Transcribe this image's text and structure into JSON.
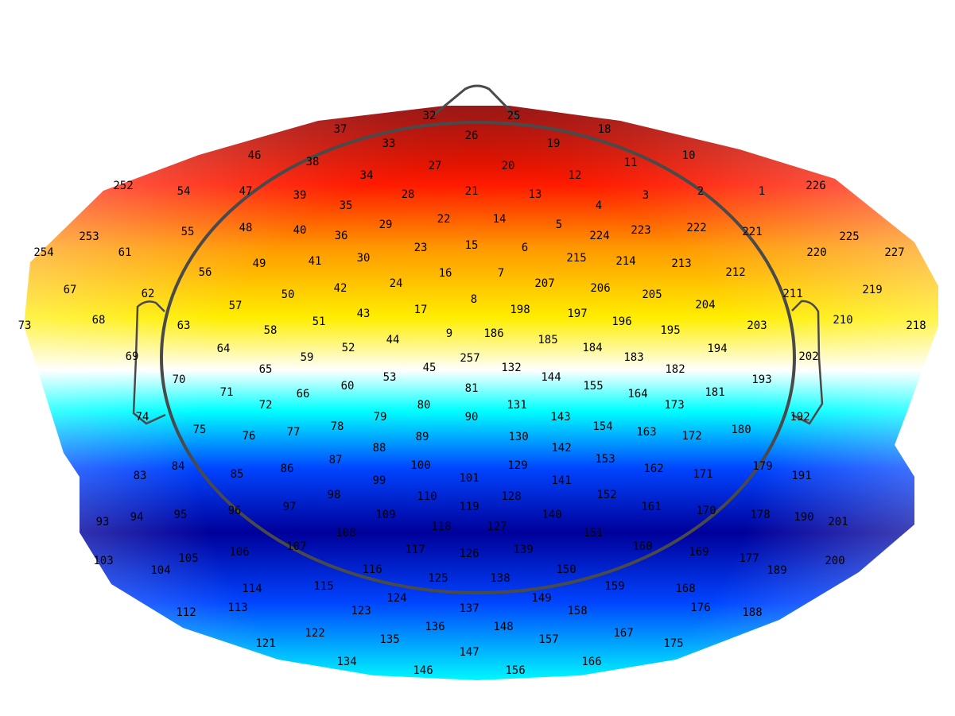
{
  "map": {
    "colors": {
      "dark_red": "#8b0000",
      "red": "#ff1a00",
      "orange": "#ff9900",
      "yellow": "#ffee00",
      "white": "#ffffff",
      "cyan": "#00ffff",
      "blue": "#0044ff",
      "dark_blue": "#00009a",
      "outline": "#4a4a4a"
    },
    "electrodes": [
      {
        "label": "1"
      },
      {
        "label": "2"
      },
      {
        "label": "3"
      },
      {
        "label": "4"
      },
      {
        "label": "5"
      },
      {
        "label": "6"
      },
      {
        "label": "7"
      },
      {
        "label": "8"
      },
      {
        "label": "9"
      },
      {
        "label": "10"
      },
      {
        "label": "11"
      },
      {
        "label": "12"
      },
      {
        "label": "13"
      },
      {
        "label": "14"
      },
      {
        "label": "15"
      },
      {
        "label": "16"
      },
      {
        "label": "17"
      },
      {
        "label": "18"
      },
      {
        "label": "19"
      },
      {
        "label": "20"
      },
      {
        "label": "21"
      },
      {
        "label": "22"
      },
      {
        "label": "23"
      },
      {
        "label": "24"
      },
      {
        "label": "25"
      },
      {
        "label": "26"
      },
      {
        "label": "27"
      },
      {
        "label": "28"
      },
      {
        "label": "29"
      },
      {
        "label": "30"
      },
      {
        "label": "32"
      },
      {
        "label": "33"
      },
      {
        "label": "34"
      },
      {
        "label": "35"
      },
      {
        "label": "36"
      },
      {
        "label": "37"
      },
      {
        "label": "38"
      },
      {
        "label": "39"
      },
      {
        "label": "40"
      },
      {
        "label": "41"
      },
      {
        "label": "42"
      },
      {
        "label": "43"
      },
      {
        "label": "44"
      },
      {
        "label": "45"
      },
      {
        "label": "46"
      },
      {
        "label": "47"
      },
      {
        "label": "48"
      },
      {
        "label": "49"
      },
      {
        "label": "50"
      },
      {
        "label": "51"
      },
      {
        "label": "52"
      },
      {
        "label": "53"
      },
      {
        "label": "54"
      },
      {
        "label": "55"
      },
      {
        "label": "56"
      },
      {
        "label": "57"
      },
      {
        "label": "58"
      },
      {
        "label": "59"
      },
      {
        "label": "60"
      },
      {
        "label": "61"
      },
      {
        "label": "62"
      },
      {
        "label": "63"
      },
      {
        "label": "64"
      },
      {
        "label": "65"
      },
      {
        "label": "66"
      },
      {
        "label": "67"
      },
      {
        "label": "68"
      },
      {
        "label": "69"
      },
      {
        "label": "70"
      },
      {
        "label": "71"
      },
      {
        "label": "72"
      },
      {
        "label": "73"
      },
      {
        "label": "74"
      },
      {
        "label": "75"
      },
      {
        "label": "76"
      },
      {
        "label": "77"
      },
      {
        "label": "78"
      },
      {
        "label": "79"
      },
      {
        "label": "80"
      },
      {
        "label": "81"
      },
      {
        "label": "83"
      },
      {
        "label": "84"
      },
      {
        "label": "85"
      },
      {
        "label": "86"
      },
      {
        "label": "87"
      },
      {
        "label": "88"
      },
      {
        "label": "89"
      },
      {
        "label": "90"
      },
      {
        "label": "93"
      },
      {
        "label": "94"
      },
      {
        "label": "95"
      },
      {
        "label": "96"
      },
      {
        "label": "97"
      },
      {
        "label": "98"
      },
      {
        "label": "99"
      },
      {
        "label": "100"
      },
      {
        "label": "101"
      },
      {
        "label": "103"
      },
      {
        "label": "104"
      },
      {
        "label": "105"
      },
      {
        "label": "106"
      },
      {
        "label": "107"
      },
      {
        "label": "108"
      },
      {
        "label": "109"
      },
      {
        "label": "110"
      },
      {
        "label": "112"
      },
      {
        "label": "113"
      },
      {
        "label": "114"
      },
      {
        "label": "115"
      },
      {
        "label": "116"
      },
      {
        "label": "117"
      },
      {
        "label": "118"
      },
      {
        "label": "119"
      },
      {
        "label": "121"
      },
      {
        "label": "122"
      },
      {
        "label": "123"
      },
      {
        "label": "124"
      },
      {
        "label": "125"
      },
      {
        "label": "126"
      },
      {
        "label": "127"
      },
      {
        "label": "128"
      },
      {
        "label": "129"
      },
      {
        "label": "130"
      },
      {
        "label": "131"
      },
      {
        "label": "132"
      },
      {
        "label": "134"
      },
      {
        "label": "135"
      },
      {
        "label": "136"
      },
      {
        "label": "137"
      },
      {
        "label": "138"
      },
      {
        "label": "139"
      },
      {
        "label": "140"
      },
      {
        "label": "141"
      },
      {
        "label": "142"
      },
      {
        "label": "143"
      },
      {
        "label": "144"
      },
      {
        "label": "146"
      },
      {
        "label": "147"
      },
      {
        "label": "148"
      },
      {
        "label": "149"
      },
      {
        "label": "150"
      },
      {
        "label": "151"
      },
      {
        "label": "152"
      },
      {
        "label": "153"
      },
      {
        "label": "154"
      },
      {
        "label": "155"
      },
      {
        "label": "156"
      },
      {
        "label": "157"
      },
      {
        "label": "158"
      },
      {
        "label": "159"
      },
      {
        "label": "160"
      },
      {
        "label": "161"
      },
      {
        "label": "162"
      },
      {
        "label": "163"
      },
      {
        "label": "164"
      },
      {
        "label": "166"
      },
      {
        "label": "167"
      },
      {
        "label": "168"
      },
      {
        "label": "169"
      },
      {
        "label": "170"
      },
      {
        "label": "171"
      },
      {
        "label": "172"
      },
      {
        "label": "173"
      },
      {
        "label": "175"
      },
      {
        "label": "176"
      },
      {
        "label": "177"
      },
      {
        "label": "178"
      },
      {
        "label": "179"
      },
      {
        "label": "180"
      },
      {
        "label": "181"
      },
      {
        "label": "182"
      },
      {
        "label": "183"
      },
      {
        "label": "184"
      },
      {
        "label": "185"
      },
      {
        "label": "186"
      },
      {
        "label": "188"
      },
      {
        "label": "189"
      },
      {
        "label": "190"
      },
      {
        "label": "191"
      },
      {
        "label": "192"
      },
      {
        "label": "193"
      },
      {
        "label": "194"
      },
      {
        "label": "195"
      },
      {
        "label": "196"
      },
      {
        "label": "197"
      },
      {
        "label": "198"
      },
      {
        "label": "200"
      },
      {
        "label": "201"
      },
      {
        "label": "202"
      },
      {
        "label": "203"
      },
      {
        "label": "204"
      },
      {
        "label": "205"
      },
      {
        "label": "206"
      },
      {
        "label": "207"
      },
      {
        "label": "210"
      },
      {
        "label": "211"
      },
      {
        "label": "212"
      },
      {
        "label": "213"
      },
      {
        "label": "214"
      },
      {
        "label": "215"
      },
      {
        "label": "218"
      },
      {
        "label": "219"
      },
      {
        "label": "220"
      },
      {
        "label": "221"
      },
      {
        "label": "222"
      },
      {
        "label": "223"
      },
      {
        "label": "224"
      },
      {
        "label": "225"
      },
      {
        "label": "226"
      },
      {
        "label": "227"
      },
      {
        "label": "252"
      },
      {
        "label": "253"
      },
      {
        "label": "254"
      },
      {
        "label": "257"
      }
    ]
  }
}
